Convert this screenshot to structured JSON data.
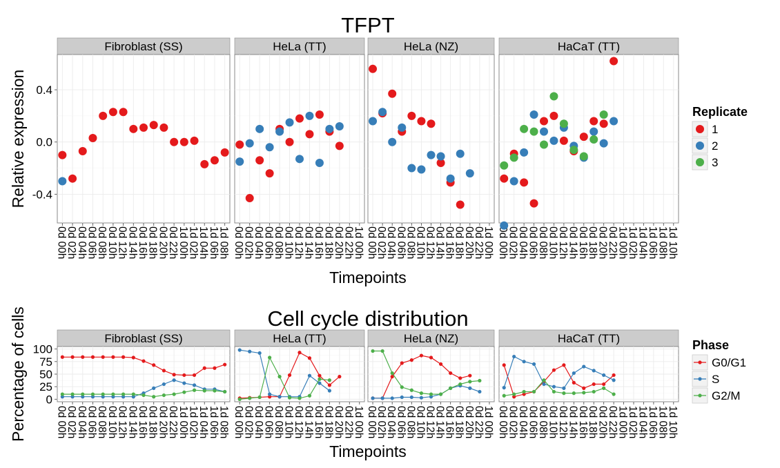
{
  "chart_data": [
    {
      "type": "scatter",
      "title": "TFPT",
      "xlabel": "Timepoints",
      "ylabel": "Relative expression",
      "ylim": [
        -0.62,
        0.67
      ],
      "yticks": [
        -0.4,
        0.0,
        0.4
      ],
      "ytick_labels": [
        "-0.4",
        "0.0",
        "0.4"
      ],
      "grid": true,
      "legend": {
        "title": "Replicate",
        "placement": "right",
        "entries": [
          {
            "name": "1",
            "color": "#e41a1c"
          },
          {
            "name": "2",
            "color": "#377eb8"
          },
          {
            "name": "3",
            "color": "#4daf4a"
          }
        ]
      },
      "panels": [
        {
          "name": "Fibroblast (SS)",
          "x": [
            "0d 00h",
            "0d 02h",
            "0d 04h",
            "0d 06h",
            "0d 08h",
            "0d 10h",
            "0d 12h",
            "0d 14h",
            "0d 16h",
            "0d 18h",
            "0d 20h",
            "0d 22h",
            "1d 00h",
            "1d 02h",
            "1d 04h",
            "1d 06h",
            "1d 08h"
          ],
          "series": [
            {
              "name": "1",
              "values": [
                -0.1,
                -0.28,
                -0.07,
                0.03,
                0.2,
                0.23,
                0.23,
                0.1,
                0.11,
                0.13,
                0.11,
                0.0,
                0.0,
                0.01,
                -0.17,
                -0.14,
                -0.08
              ]
            },
            {
              "name": "2",
              "values": [
                -0.3,
                null,
                null,
                null,
                null,
                null,
                null,
                null,
                null,
                null,
                null,
                null,
                null,
                null,
                null,
                null,
                null
              ]
            }
          ]
        },
        {
          "name": "HeLa (TT)",
          "x": [
            "0d 00h",
            "0d 02h",
            "0d 04h",
            "0d 06h",
            "0d 08h",
            "0d 10h",
            "0d 12h",
            "0d 14h",
            "0d 16h",
            "0d 18h",
            "0d 20h",
            "0d 22h",
            "1d 00h"
          ],
          "series": [
            {
              "name": "1",
              "values": [
                -0.02,
                -0.43,
                -0.14,
                -0.24,
                0.1,
                0.0,
                0.18,
                0.06,
                0.21,
                0.08,
                -0.03,
                null,
                null
              ]
            },
            {
              "name": "2",
              "values": [
                -0.15,
                -0.01,
                0.1,
                -0.04,
                0.08,
                0.15,
                -0.13,
                0.2,
                -0.16,
                0.1,
                0.12,
                null,
                null
              ]
            }
          ]
        },
        {
          "name": "HeLa (NZ)",
          "x": [
            "0d 00h",
            "0d 02h",
            "0d 04h",
            "0d 06h",
            "0d 08h",
            "0d 10h",
            "0d 12h",
            "0d 14h",
            "0d 16h",
            "0d 18h",
            "0d 20h",
            "0d 22h",
            "1d 00h"
          ],
          "series": [
            {
              "name": "1",
              "values": [
                0.56,
                0.22,
                0.37,
                0.08,
                0.2,
                0.16,
                0.14,
                -0.16,
                -0.31,
                -0.48,
                null,
                null,
                null
              ]
            },
            {
              "name": "2",
              "values": [
                0.16,
                0.23,
                0.0,
                0.11,
                -0.2,
                -0.21,
                -0.1,
                -0.11,
                -0.28,
                -0.09,
                -0.24,
                null,
                null
              ]
            }
          ]
        },
        {
          "name": "HaCaT (TT)",
          "x": [
            "0d 00h",
            "0d 02h",
            "0d 04h",
            "0d 06h",
            "0d 08h",
            "0d 10h",
            "0d 12h",
            "0d 14h",
            "0d 16h",
            "0d 18h",
            "0d 20h",
            "0d 22h",
            "1d 00h",
            "1d 02h",
            "1d 04h",
            "1d 06h",
            "1d 08h",
            "1d 10h"
          ],
          "series": [
            {
              "name": "1",
              "values": [
                -0.28,
                -0.09,
                -0.31,
                -0.47,
                0.16,
                0.2,
                0.01,
                -0.07,
                0.04,
                0.16,
                0.14,
                0.62,
                null,
                null,
                null,
                null,
                null,
                null
              ]
            },
            {
              "name": "2",
              "values": [
                -0.64,
                -0.3,
                -0.08,
                0.21,
                0.08,
                0.01,
                0.11,
                -0.03,
                -0.12,
                0.08,
                -0.01,
                0.16,
                null,
                null,
                null,
                null,
                null,
                null
              ]
            },
            {
              "name": "3",
              "values": [
                -0.18,
                -0.12,
                0.1,
                0.08,
                -0.02,
                0.35,
                0.14,
                -0.06,
                -0.11,
                0.02,
                0.21,
                null,
                null,
                null,
                null,
                null,
                null,
                null
              ]
            }
          ]
        }
      ]
    },
    {
      "type": "line",
      "title": "Cell cycle distribution",
      "xlabel": "Timepoints",
      "ylabel": "Percentage of cells",
      "ylim": [
        -5,
        105
      ],
      "yticks": [
        0,
        25,
        50,
        75,
        100
      ],
      "ytick_labels": [
        "0",
        "25",
        "50",
        "75",
        "100"
      ],
      "grid": true,
      "legend": {
        "title": "Phase",
        "placement": "right",
        "entries": [
          {
            "name": "G0/G1",
            "color": "#e41a1c"
          },
          {
            "name": "S",
            "color": "#377eb8"
          },
          {
            "name": "G2/M",
            "color": "#4daf4a"
          }
        ]
      },
      "panels": [
        {
          "name": "Fibroblast (SS)",
          "x": [
            "0d 00h",
            "0d 02h",
            "0d 04h",
            "0d 06h",
            "0d 08h",
            "0d 10h",
            "0d 12h",
            "0d 14h",
            "0d 16h",
            "0d 18h",
            "0d 20h",
            "0d 22h",
            "1d 00h",
            "1d 02h",
            "1d 04h",
            "1d 06h",
            "1d 08h"
          ],
          "series": [
            {
              "name": "G0/G1",
              "values": [
                84,
                84,
                84,
                84,
                84,
                84,
                84,
                83,
                76,
                68,
                57,
                49,
                48,
                48,
                62,
                62,
                69
              ]
            },
            {
              "name": "S",
              "values": [
                5,
                5,
                5,
                5,
                5,
                5,
                5,
                5,
                12,
                22,
                30,
                38,
                32,
                28,
                20,
                20,
                15
              ]
            },
            {
              "name": "G2/M",
              "values": [
                10,
                10,
                10,
                10,
                10,
                10,
                10,
                10,
                8,
                5,
                8,
                10,
                14,
                18,
                17,
                17,
                15
              ]
            }
          ]
        },
        {
          "name": "HeLa (TT)",
          "x": [
            "0d 00h",
            "0d 02h",
            "0d 04h",
            "0d 06h",
            "0d 08h",
            "0d 10h",
            "0d 12h",
            "0d 14h",
            "0d 16h",
            "0d 18h",
            "0d 20h",
            "0d 22h",
            "1d 00h"
          ],
          "series": [
            {
              "name": "G0/G1",
              "values": [
                2,
                3,
                4,
                5,
                5,
                48,
                93,
                82,
                47,
                28,
                45,
                null,
                null
              ]
            },
            {
              "name": "S",
              "values": [
                98,
                95,
                92,
                10,
                5,
                5,
                5,
                47,
                32,
                17,
                null,
                null,
                null
              ]
            },
            {
              "name": "G2/M",
              "values": [
                0,
                2,
                4,
                83,
                45,
                3,
                2,
                7,
                40,
                38,
                null,
                null,
                null
              ]
            }
          ]
        },
        {
          "name": "HeLa (NZ)",
          "x": [
            "0d 00h",
            "0d 02h",
            "0d 04h",
            "0d 06h",
            "0d 08h",
            "0d 10h",
            "0d 12h",
            "0d 14h",
            "0d 16h",
            "0d 18h",
            "0d 20h",
            "0d 22h",
            "1d 00h"
          ],
          "series": [
            {
              "name": "G0/G1",
              "values": [
                2,
                2,
                45,
                72,
                78,
                87,
                83,
                70,
                52,
                42,
                47,
                null,
                null
              ]
            },
            {
              "name": "S",
              "values": [
                2,
                2,
                2,
                4,
                4,
                3,
                5,
                10,
                22,
                27,
                22,
                15,
                null
              ]
            },
            {
              "name": "G2/M",
              "values": [
                96,
                96,
                52,
                24,
                18,
                12,
                10,
                10,
                22,
                30,
                35,
                37,
                null
              ]
            }
          ]
        },
        {
          "name": "HaCaT (TT)",
          "x": [
            "0d 00h",
            "0d 02h",
            "0d 04h",
            "0d 06h",
            "0d 08h",
            "0d 10h",
            "0d 12h",
            "0d 14h",
            "0d 16h",
            "0d 18h",
            "0d 20h",
            "0d 22h",
            "1d 00h",
            "1d 02h",
            "1d 04h",
            "1d 06h",
            "1d 08h",
            "1d 10h"
          ],
          "series": [
            {
              "name": "G0/G1",
              "values": [
                68,
                5,
                10,
                15,
                35,
                58,
                68,
                33,
                22,
                30,
                30,
                48,
                null,
                null,
                null,
                null,
                null,
                null
              ]
            },
            {
              "name": "S",
              "values": [
                23,
                85,
                75,
                70,
                30,
                25,
                22,
                52,
                65,
                57,
                48,
                38,
                null,
                null,
                null,
                null,
                null,
                null
              ]
            },
            {
              "name": "G2/M",
              "values": [
                7,
                10,
                15,
                15,
                38,
                15,
                12,
                12,
                13,
                15,
                22,
                10,
                null,
                null,
                null,
                null,
                null,
                null
              ]
            }
          ]
        }
      ]
    }
  ]
}
